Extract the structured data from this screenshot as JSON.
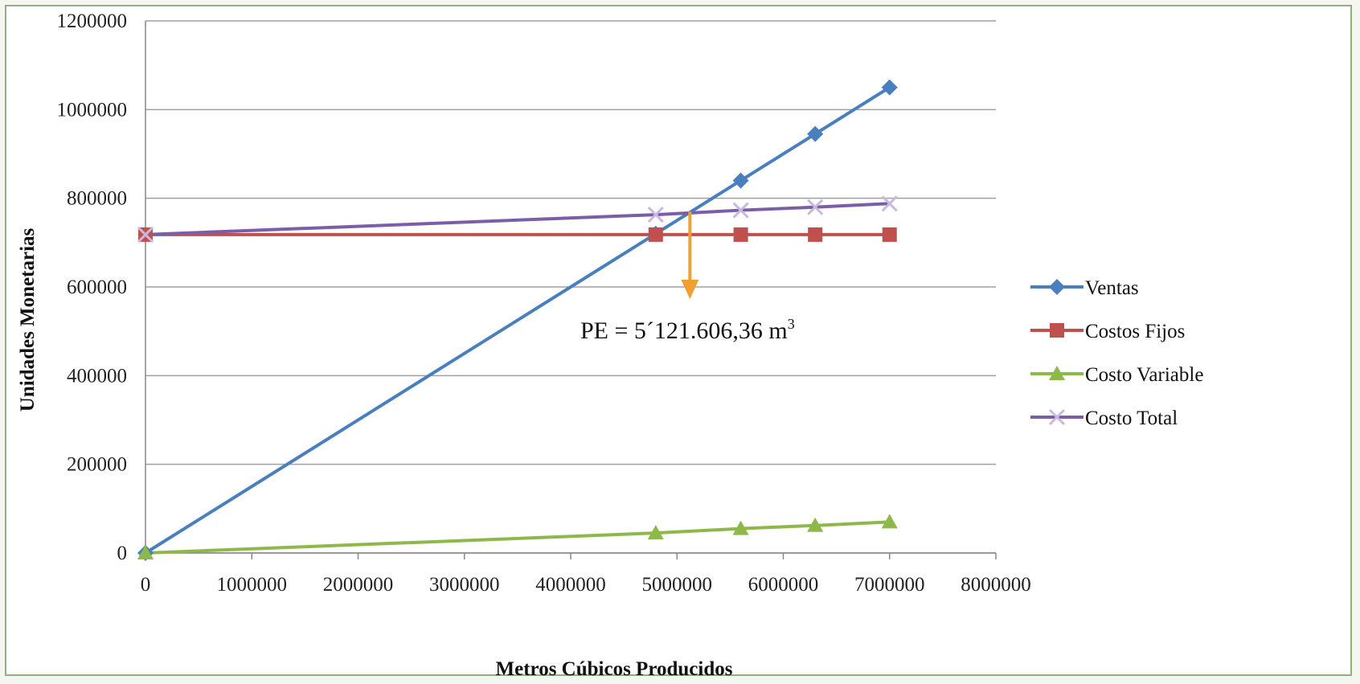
{
  "chart_data": {
    "type": "line",
    "xlabel": "Metros Cúbicos  Producidos",
    "ylabel": "Unidades  Monetarias",
    "xlim": [
      0,
      8000000
    ],
    "ylim": [
      0,
      1200000
    ],
    "xticks": [
      "0",
      "1000000",
      "2000000",
      "3000000",
      "4000000",
      "5000000",
      "6000000",
      "7000000",
      "8000000"
    ],
    "yticks": [
      "0",
      "200000",
      "400000",
      "600000",
      "800000",
      "1000000",
      "1200000"
    ],
    "grid": "horizontal",
    "legend_position": "right",
    "x": [
      0,
      4800000,
      5600000,
      6300000,
      7000000
    ],
    "series": [
      {
        "name": "Ventas",
        "color": "#4a7fbf",
        "marker": "diamond",
        "values": [
          0,
          720000,
          840000,
          945000,
          1050000
        ]
      },
      {
        "name": "Costos Fijos",
        "color": "#c0504d",
        "marker": "square",
        "values": [
          718000,
          718000,
          718000,
          718000,
          718000
        ]
      },
      {
        "name": "Costo Variable",
        "color": "#8db84a",
        "marker": "triangle",
        "values": [
          0,
          45000,
          55000,
          62000,
          70000
        ]
      },
      {
        "name": "Costo Total",
        "color": "#7b5ea7",
        "marker": "x",
        "values": [
          718000,
          763000,
          773000,
          780000,
          788000
        ]
      }
    ],
    "annotation": {
      "text": "PE = 5´121.606,36 m",
      "superscript": "3",
      "x": 5121606,
      "y": 770000,
      "arrow_color": "#f0a030"
    }
  }
}
